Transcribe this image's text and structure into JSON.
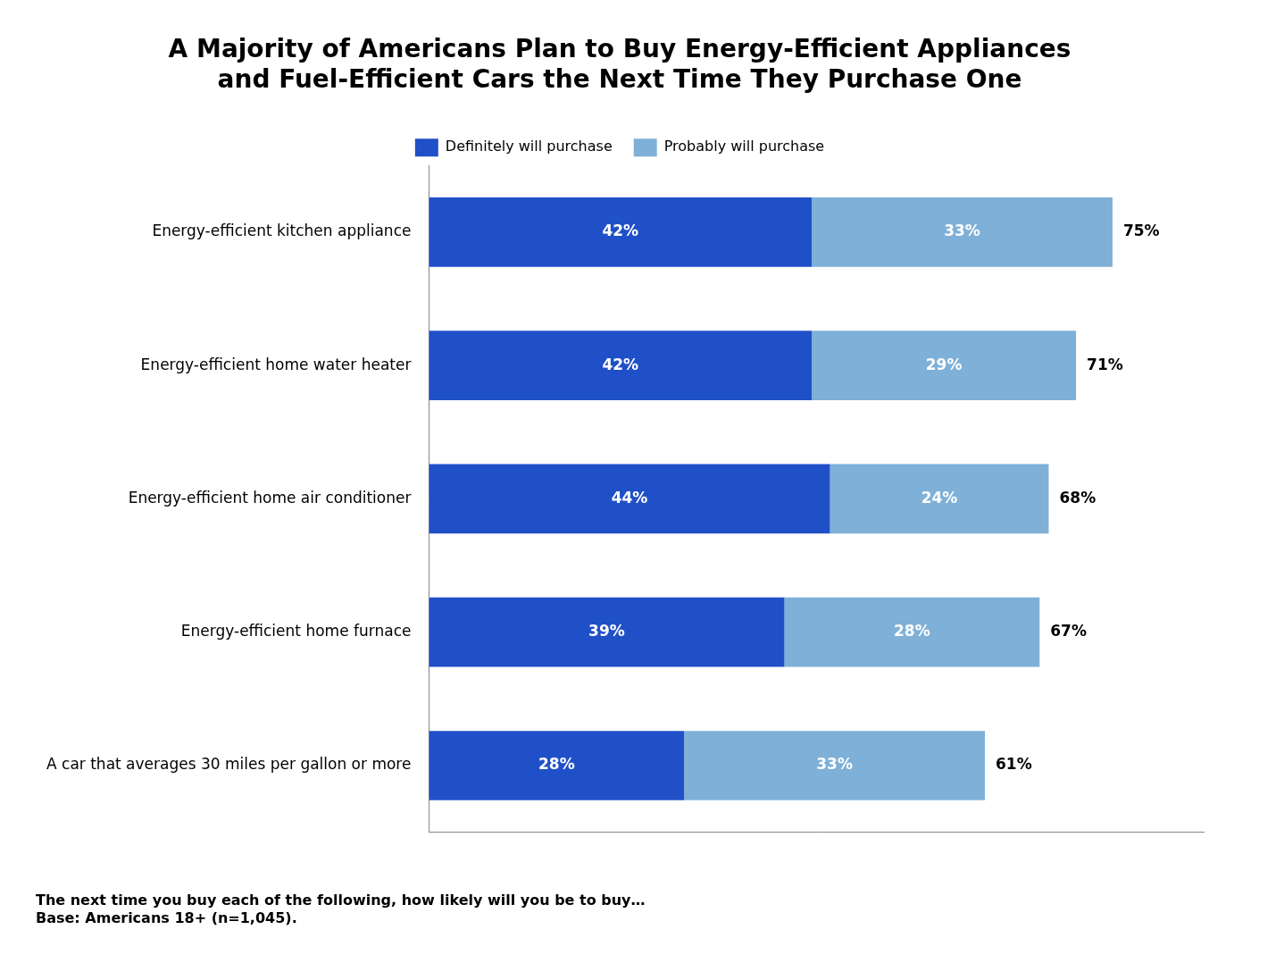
{
  "chart_data": {
    "type": "bar",
    "orientation": "horizontal",
    "stacked": true,
    "title": [
      "A Majority of Americans Plan to Buy Energy-Efficient Appliances",
      "and Fuel-Efficient Cars the Next Time They Purchase One"
    ],
    "annotations": [
      "The next time you buy each of the following, how likely will you be to buy…",
      "Base: Americans 18+ (n=1,045)."
    ],
    "categories": [
      "Energy-efficient kitchen appliance",
      "Energy-efficient home water heater",
      "Energy-efficient home air conditioner",
      "Energy-efficient home furnace",
      "A car that averages 30 miles per gallon or more"
    ],
    "series": [
      {
        "name": "Definitely will purchase",
        "color": "#2050C8",
        "values": [
          42,
          42,
          44,
          39,
          28
        ],
        "value_labels": [
          "42%",
          "42%",
          "44%",
          "39%",
          "28%"
        ]
      },
      {
        "name": "Probably will purchase",
        "color": "#7EB0D8",
        "values": [
          33,
          29,
          24,
          28,
          33
        ],
        "value_labels": [
          "33%",
          "29%",
          "24%",
          "28%",
          "33%"
        ]
      }
    ],
    "totals": [
      75,
      71,
      68,
      67,
      61
    ],
    "total_labels": [
      "75%",
      "71%",
      "68%",
      "67%",
      "61%"
    ],
    "xlim": [
      0,
      85
    ],
    "data_labels": true,
    "tick_labels": "y",
    "grid": false,
    "legend": "top"
  }
}
